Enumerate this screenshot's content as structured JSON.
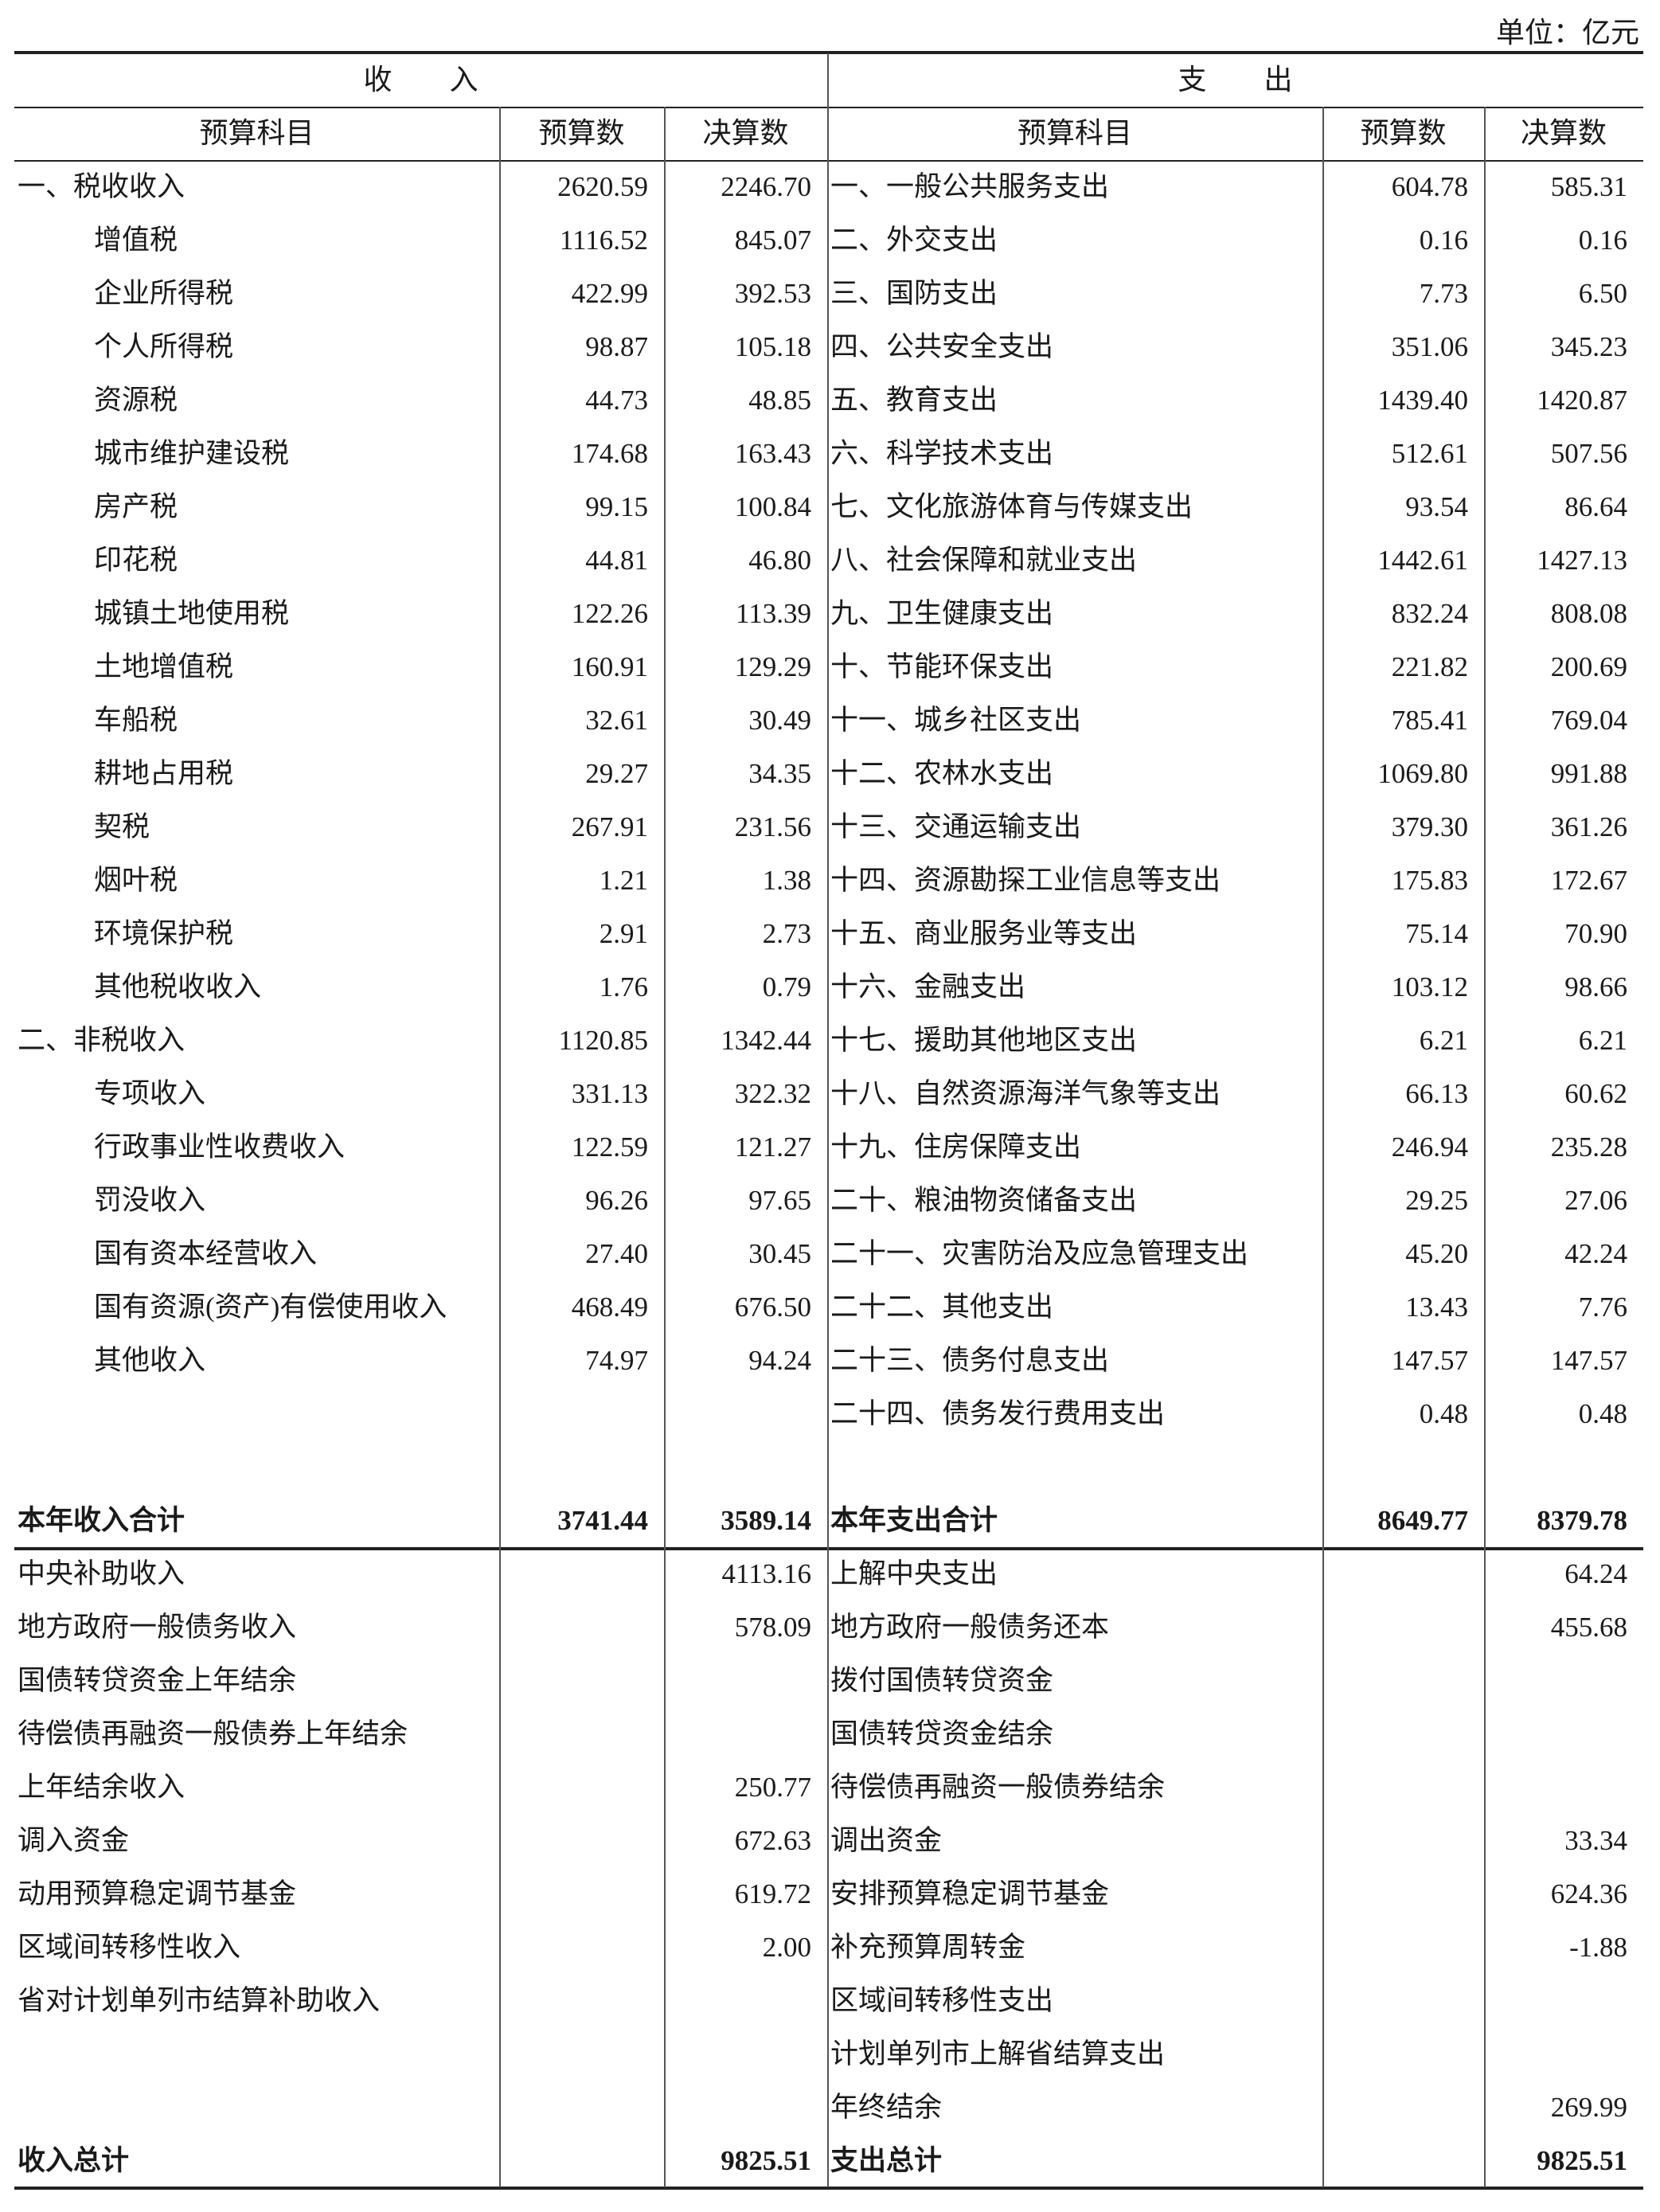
{
  "unit_label": "单位：亿元",
  "sections": {
    "income": "收　　入",
    "expenditure": "支　　出"
  },
  "column_headers": {
    "item": "预算科目",
    "budget": "预算数",
    "final": "决算数"
  },
  "income": {
    "rows": [
      {
        "name": "一、税收收入",
        "indent": false,
        "budget": "2620.59",
        "final": "2246.70"
      },
      {
        "name": "增值税",
        "indent": true,
        "budget": "1116.52",
        "final": "845.07"
      },
      {
        "name": "企业所得税",
        "indent": true,
        "budget": "422.99",
        "final": "392.53"
      },
      {
        "name": "个人所得税",
        "indent": true,
        "budget": "98.87",
        "final": "105.18"
      },
      {
        "name": "资源税",
        "indent": true,
        "budget": "44.73",
        "final": "48.85"
      },
      {
        "name": "城市维护建设税",
        "indent": true,
        "budget": "174.68",
        "final": "163.43"
      },
      {
        "name": "房产税",
        "indent": true,
        "budget": "99.15",
        "final": "100.84"
      },
      {
        "name": "印花税",
        "indent": true,
        "budget": "44.81",
        "final": "46.80"
      },
      {
        "name": "城镇土地使用税",
        "indent": true,
        "budget": "122.26",
        "final": "113.39"
      },
      {
        "name": "土地增值税",
        "indent": true,
        "budget": "160.91",
        "final": "129.29"
      },
      {
        "name": "车船税",
        "indent": true,
        "budget": "32.61",
        "final": "30.49"
      },
      {
        "name": "耕地占用税",
        "indent": true,
        "budget": "29.27",
        "final": "34.35"
      },
      {
        "name": "契税",
        "indent": true,
        "budget": "267.91",
        "final": "231.56"
      },
      {
        "name": "烟叶税",
        "indent": true,
        "budget": "1.21",
        "final": "1.38"
      },
      {
        "name": "环境保护税",
        "indent": true,
        "budget": "2.91",
        "final": "2.73"
      },
      {
        "name": "其他税收收入",
        "indent": true,
        "budget": "1.76",
        "final": "0.79"
      },
      {
        "name": "二、非税收入",
        "indent": false,
        "budget": "1120.85",
        "final": "1342.44"
      },
      {
        "name": "专项收入",
        "indent": true,
        "budget": "331.13",
        "final": "322.32"
      },
      {
        "name": "行政事业性收费收入",
        "indent": true,
        "budget": "122.59",
        "final": "121.27"
      },
      {
        "name": "罚没收入",
        "indent": true,
        "budget": "96.26",
        "final": "97.65"
      },
      {
        "name": "国有资本经营收入",
        "indent": true,
        "budget": "27.40",
        "final": "30.45"
      },
      {
        "name": "国有资源(资产)有偿使用收入",
        "indent": true,
        "budget": "468.49",
        "final": "676.50"
      },
      {
        "name": "其他收入",
        "indent": true,
        "budget": "74.97",
        "final": "94.24"
      }
    ],
    "subtotal": {
      "name": "本年收入合计",
      "budget": "3741.44",
      "final": "3589.14"
    },
    "transfers": [
      {
        "name": "中央补助收入",
        "final": "4113.16"
      },
      {
        "name": "地方政府一般债务收入",
        "final": "578.09"
      },
      {
        "name": "国债转贷资金上年结余",
        "final": ""
      },
      {
        "name": "待偿债再融资一般债券上年结余",
        "final": ""
      },
      {
        "name": "上年结余收入",
        "final": "250.77"
      },
      {
        "name": "调入资金",
        "final": "672.63"
      },
      {
        "name": "动用预算稳定调节基金",
        "final": "619.72"
      },
      {
        "name": "区域间转移性收入",
        "final": "2.00"
      },
      {
        "name": "省对计划单列市结算补助收入",
        "final": ""
      }
    ],
    "grand_total": {
      "name": "收入总计",
      "final": "9825.51"
    }
  },
  "expenditure": {
    "rows": [
      {
        "name": "一、一般公共服务支出",
        "budget": "604.78",
        "final": "585.31"
      },
      {
        "name": "二、外交支出",
        "budget": "0.16",
        "final": "0.16"
      },
      {
        "name": "三、国防支出",
        "budget": "7.73",
        "final": "6.50"
      },
      {
        "name": "四、公共安全支出",
        "budget": "351.06",
        "final": "345.23"
      },
      {
        "name": "五、教育支出",
        "budget": "1439.40",
        "final": "1420.87"
      },
      {
        "name": "六、科学技术支出",
        "budget": "512.61",
        "final": "507.56"
      },
      {
        "name": "七、文化旅游体育与传媒支出",
        "budget": "93.54",
        "final": "86.64"
      },
      {
        "name": "八、社会保障和就业支出",
        "budget": "1442.61",
        "final": "1427.13"
      },
      {
        "name": "九、卫生健康支出",
        "budget": "832.24",
        "final": "808.08"
      },
      {
        "name": "十、节能环保支出",
        "budget": "221.82",
        "final": "200.69"
      },
      {
        "name": "十一、城乡社区支出",
        "budget": "785.41",
        "final": "769.04"
      },
      {
        "name": "十二、农林水支出",
        "budget": "1069.80",
        "final": "991.88"
      },
      {
        "name": "十三、交通运输支出",
        "budget": "379.30",
        "final": "361.26"
      },
      {
        "name": "十四、资源勘探工业信息等支出",
        "budget": "175.83",
        "final": "172.67"
      },
      {
        "name": "十五、商业服务业等支出",
        "budget": "75.14",
        "final": "70.90"
      },
      {
        "name": "十六、金融支出",
        "budget": "103.12",
        "final": "98.66"
      },
      {
        "name": "十七、援助其他地区支出",
        "budget": "6.21",
        "final": "6.21"
      },
      {
        "name": "十八、自然资源海洋气象等支出",
        "budget": "66.13",
        "final": "60.62"
      },
      {
        "name": "十九、住房保障支出",
        "budget": "246.94",
        "final": "235.28"
      },
      {
        "name": "二十、粮油物资储备支出",
        "budget": "29.25",
        "final": "27.06"
      },
      {
        "name": "二十一、灾害防治及应急管理支出",
        "budget": "45.20",
        "final": "42.24"
      },
      {
        "name": "二十二、其他支出",
        "budget": "13.43",
        "final": "7.76"
      },
      {
        "name": "二十三、债务付息支出",
        "budget": "147.57",
        "final": "147.57"
      },
      {
        "name": "二十四、债务发行费用支出",
        "budget": "0.48",
        "final": "0.48"
      }
    ],
    "subtotal": {
      "name": "本年支出合计",
      "budget": "8649.77",
      "final": "8379.78"
    },
    "transfers": [
      {
        "name": "上解中央支出",
        "final": "64.24"
      },
      {
        "name": "地方政府一般债务还本",
        "final": "455.68"
      },
      {
        "name": "拨付国债转贷资金",
        "final": ""
      },
      {
        "name": "国债转贷资金结余",
        "final": ""
      },
      {
        "name": "待偿债再融资一般债券结余",
        "final": ""
      },
      {
        "name": "调出资金",
        "final": "33.34"
      },
      {
        "name": "安排预算稳定调节基金",
        "final": "624.36"
      },
      {
        "name": "补充预算周转金",
        "final": "-1.88"
      },
      {
        "name": "区域间转移性支出",
        "final": ""
      },
      {
        "name": "计划单列市上解省结算支出",
        "final": ""
      },
      {
        "name": "年终结余",
        "final": "269.99"
      }
    ],
    "grand_total": {
      "name": "支出总计",
      "final": "9825.51"
    }
  }
}
